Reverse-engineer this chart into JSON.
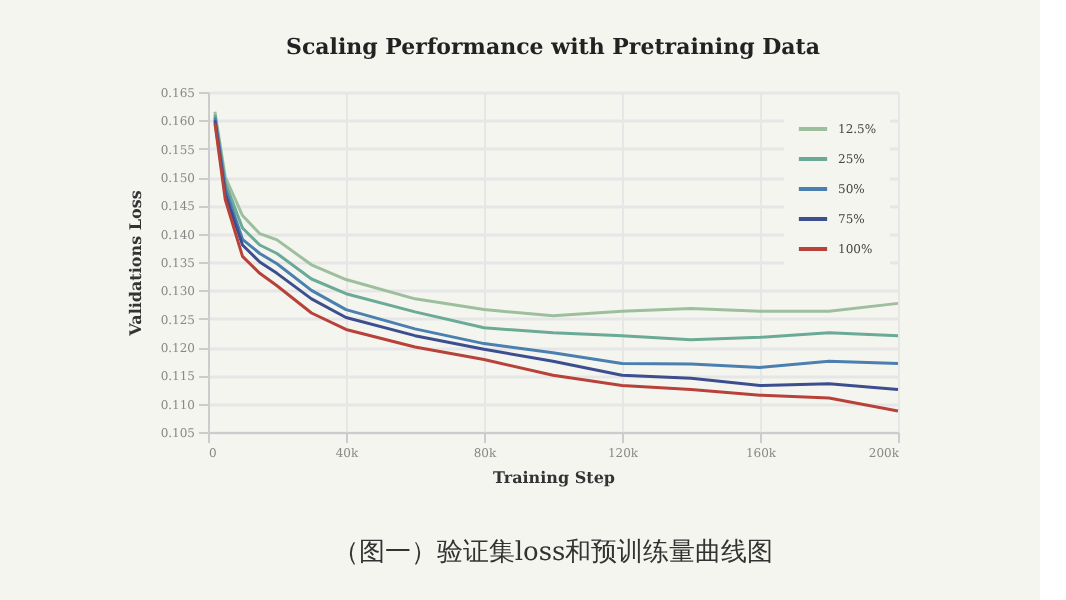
{
  "chart_data": {
    "type": "line",
    "title": "Scaling Performance with Pretraining Data",
    "xlabel": "Training Step",
    "ylabel": "Validations Loss",
    "x": [
      2000,
      5000,
      10000,
      15000,
      20000,
      30000,
      40000,
      60000,
      80000,
      100000,
      120000,
      140000,
      160000,
      180000,
      200000
    ],
    "series": [
      {
        "name": "12.5%",
        "color": "#9dbf9e",
        "values": [
          0.1615,
          0.15,
          0.1432,
          0.14,
          0.1389,
          0.1345,
          0.1319,
          0.1285,
          0.1266,
          0.1255,
          0.1263,
          0.1268,
          0.1263,
          0.1263,
          0.1277
        ]
      },
      {
        "name": "25%",
        "color": "#6aaa96",
        "values": [
          0.161,
          0.149,
          0.141,
          0.138,
          0.1365,
          0.132,
          0.1294,
          0.1262,
          0.1234,
          0.1225,
          0.122,
          0.1213,
          0.1217,
          0.1225,
          0.122
        ]
      },
      {
        "name": "50%",
        "color": "#4a7fb0",
        "values": [
          0.1605,
          0.148,
          0.139,
          0.1365,
          0.1347,
          0.13,
          0.1266,
          0.1232,
          0.1206,
          0.119,
          0.1171,
          0.117,
          0.1164,
          0.1175,
          0.1171
        ]
      },
      {
        "name": "75%",
        "color": "#3d4e8f",
        "values": [
          0.16,
          0.147,
          0.138,
          0.135,
          0.133,
          0.1285,
          0.1252,
          0.122,
          0.1196,
          0.1175,
          0.115,
          0.1145,
          0.1132,
          0.1135,
          0.1125
        ]
      },
      {
        "name": "100%",
        "color": "#b8423a",
        "values": [
          0.1595,
          0.146,
          0.136,
          0.133,
          0.1308,
          0.126,
          0.1231,
          0.12,
          0.1178,
          0.115,
          0.1132,
          0.1125,
          0.1115,
          0.111,
          0.1087
        ]
      }
    ],
    "xlim": [
      0,
      200000
    ],
    "ylim": [
      0.105,
      0.165
    ],
    "xticks": [
      0,
      {
        "value": 40000,
        "label": "40k"
      },
      {
        "value": 80000,
        "label": "80k"
      },
      {
        "value": 120000,
        "label": "120k"
      },
      {
        "value": 160000,
        "label": "160k"
      },
      {
        "value": 200000,
        "label": "200k"
      }
    ],
    "yticks": [
      0.105,
      {
        "value": 0.11,
        "label": "0.110"
      },
      0.115,
      {
        "value": 0.12,
        "label": "0.120"
      },
      0.125,
      {
        "value": 0.13,
        "label": "0.130"
      },
      0.135,
      {
        "value": 0.14,
        "label": "0.140"
      },
      0.145,
      {
        "value": 0.15,
        "label": "0.150"
      },
      0.155,
      {
        "value": 0.16,
        "label": "0.160"
      },
      0.165
    ],
    "grid": true,
    "legend": "top right",
    "line_style": "solid",
    "marker": "none",
    "annotations": [
      "（图一）验证集loss和预训练量曲线图"
    ]
  }
}
